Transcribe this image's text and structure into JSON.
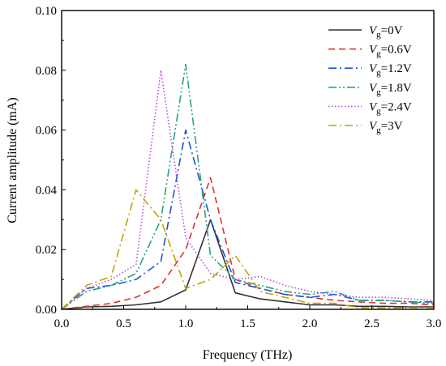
{
  "chart_data": {
    "type": "line",
    "xlabel": "Frequency (THz)",
    "ylabel": "Current amplitude (mA)",
    "xlim": [
      0.0,
      3.0
    ],
    "ylim": [
      0.0,
      0.1
    ],
    "xticks": [
      "0.0",
      "0.5",
      "1.0",
      "1.5",
      "2.0",
      "2.5",
      "3.0"
    ],
    "yticks": [
      "0.00",
      "0.02",
      "0.04",
      "0.06",
      "0.08",
      "0.10"
    ],
    "legend_position": "top-right",
    "grid": false,
    "series": [
      {
        "name": "Vg=0V",
        "legend_symbol": "V",
        "legend_sub": "g",
        "legend_value": "=0V",
        "color": "#333333",
        "dash": "solid",
        "x": [
          0.0,
          0.2,
          0.4,
          0.6,
          0.8,
          1.0,
          1.2,
          1.4,
          1.6,
          1.8,
          2.0,
          2.2,
          2.4,
          2.6,
          2.8,
          3.0
        ],
        "y": [
          0.0,
          0.0008,
          0.001,
          0.0015,
          0.0025,
          0.0065,
          0.03,
          0.0055,
          0.0035,
          0.0025,
          0.0015,
          0.0015,
          0.001,
          0.001,
          0.0008,
          0.0008
        ]
      },
      {
        "name": "Vg=0.6V",
        "legend_symbol": "V",
        "legend_sub": "g",
        "legend_value": "=0.6V",
        "color": "#e0302a",
        "dash": "dashed",
        "x": [
          0.0,
          0.2,
          0.4,
          0.6,
          0.8,
          1.0,
          1.2,
          1.4,
          1.6,
          1.8,
          2.0,
          2.2,
          2.4,
          2.6,
          2.8,
          3.0
        ],
        "y": [
          0.0,
          0.001,
          0.002,
          0.004,
          0.008,
          0.02,
          0.044,
          0.01,
          0.007,
          0.005,
          0.004,
          0.003,
          0.0025,
          0.002,
          0.002,
          0.0015
        ]
      },
      {
        "name": "Vg=1.2V",
        "legend_symbol": "V",
        "legend_sub": "g",
        "legend_value": "=1.2V",
        "color": "#1a55d6",
        "dash": "dashdot",
        "x": [
          0.0,
          0.2,
          0.4,
          0.6,
          0.8,
          1.0,
          1.2,
          1.4,
          1.6,
          1.8,
          2.0,
          2.2,
          2.4,
          2.6,
          2.8,
          3.0
        ],
        "y": [
          0.0,
          0.007,
          0.008,
          0.01,
          0.016,
          0.06,
          0.03,
          0.009,
          0.007,
          0.005,
          0.004,
          0.005,
          0.003,
          0.003,
          0.0025,
          0.0025
        ]
      },
      {
        "name": "Vg=1.8V",
        "legend_symbol": "V",
        "legend_sub": "g",
        "legend_value": "=1.8V",
        "color": "#2aa37a",
        "dash": "dashdotdot",
        "x": [
          0.0,
          0.2,
          0.4,
          0.6,
          0.8,
          1.0,
          1.2,
          1.4,
          1.6,
          1.8,
          2.0,
          2.2,
          2.4,
          2.6,
          2.8,
          3.0
        ],
        "y": [
          0.0,
          0.006,
          0.008,
          0.012,
          0.03,
          0.082,
          0.018,
          0.01,
          0.008,
          0.006,
          0.005,
          0.006,
          0.003,
          0.003,
          0.0025,
          0.002
        ]
      },
      {
        "name": "Vg=2.4V",
        "legend_symbol": "V",
        "legend_sub": "g",
        "legend_value": "=2.4V",
        "color": "#b44ae0",
        "dash": "dotted",
        "x": [
          0.0,
          0.2,
          0.4,
          0.6,
          0.8,
          1.0,
          1.2,
          1.4,
          1.6,
          1.8,
          2.0,
          2.2,
          2.4,
          2.6,
          2.8,
          3.0
        ],
        "y": [
          0.0,
          0.007,
          0.01,
          0.015,
          0.08,
          0.024,
          0.012,
          0.01,
          0.011,
          0.008,
          0.006,
          0.005,
          0.004,
          0.004,
          0.0035,
          0.003
        ]
      },
      {
        "name": "Vg=3V",
        "legend_symbol": "V",
        "legend_sub": "g",
        "legend_value": "=3V",
        "color": "#c2a400",
        "dash": "dashdot",
        "x": [
          0.0,
          0.2,
          0.4,
          0.6,
          0.8,
          1.0,
          1.2,
          1.4,
          1.6,
          1.8,
          2.0,
          2.2,
          2.4,
          2.6,
          2.8,
          3.0
        ],
        "y": [
          0.0,
          0.008,
          0.011,
          0.04,
          0.03,
          0.007,
          0.01,
          0.018,
          0.006,
          0.004,
          0.002,
          0.002,
          0.0005,
          0.0005,
          0.0005,
          0.0005
        ]
      }
    ]
  }
}
